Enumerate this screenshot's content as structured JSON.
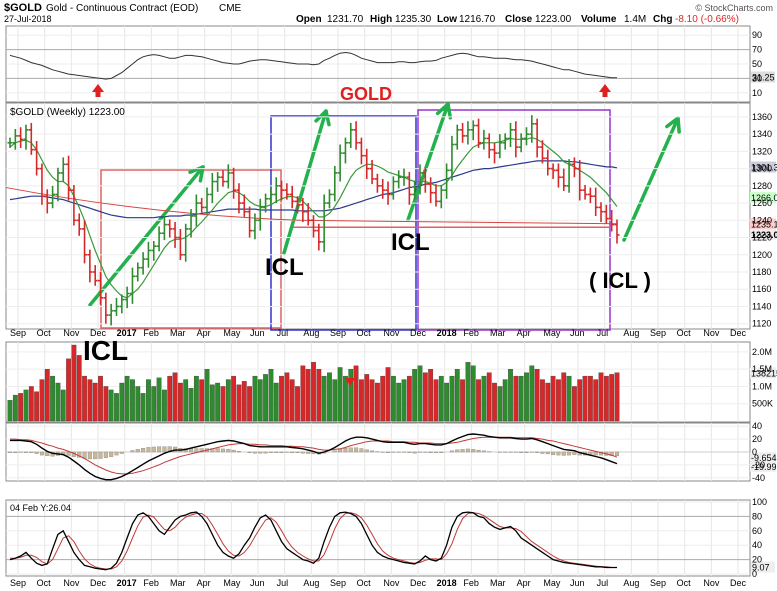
{
  "header": {
    "symbol": "$GOLD",
    "description": "Gold - Continuous Contract (EOD)",
    "exchange": "CME",
    "date": "27-Jul-2018",
    "copyright": "© StockCharts.com",
    "open_label": "Open",
    "open": "1231.70",
    "high_label": "High",
    "high": "1235.30",
    "low_label": "Low",
    "low": "1216.70",
    "close_label": "Close",
    "close": "1223.00",
    "volume_label": "Volume",
    "volume": "1.4M",
    "chg_label": "Chg",
    "chg": "-8.10 (-0.66%)"
  },
  "panels": {
    "top_axis": [
      "90",
      "70",
      "50",
      "30",
      "10"
    ],
    "top_value": "31.25",
    "price_title": "$GOLD (Weekly) 1223.00",
    "gold_label": "GOLD",
    "price_axis": [
      "1360",
      "1340",
      "1320",
      "1300",
      "1280",
      "1260",
      "1240",
      "1220",
      "1200",
      "1180",
      "1160",
      "1140",
      "1120"
    ],
    "price_tags": [
      "1301.3",
      "1266.0",
      "1235.1",
      "1223.0"
    ],
    "volume_axis": [
      "2.0M",
      "1.5M",
      "1.0M",
      "500K"
    ],
    "volume_tag": "1382150",
    "macd_axis": [
      "40",
      "20",
      "0",
      "-20",
      "-40"
    ],
    "macd_tags": [
      "-9.654",
      "-19.99"
    ],
    "stoch_title": "04 Feb Y:26.04",
    "stoch_axis": [
      "100",
      "80",
      "60",
      "40",
      "20",
      "0"
    ],
    "stoch_tag": "9.07"
  },
  "annotations": [
    "ICL",
    "ICL",
    "ICL",
    "( ICL )"
  ],
  "x_axis_labels": [
    "Sep",
    "Oct",
    "Nov",
    "Dec",
    "2017",
    "Feb",
    "Mar",
    "Apr",
    "May",
    "Jun",
    "Jul",
    "Aug",
    "Sep",
    "Oct",
    "Nov",
    "Dec",
    "2018",
    "Feb",
    "Mar",
    "Apr",
    "May",
    "Jun",
    "Jul",
    "Aug",
    "Sep",
    "Oct",
    "Nov",
    "Dec"
  ],
  "colors": {
    "up": "#2e8b2e",
    "down": "#d62828",
    "arrow": "#22b14c",
    "box_red": "#e06060",
    "box_blue": "#3333cc",
    "box_purple": "#9933cc",
    "ma_long": "#2a3b8f",
    "ma_short": "#3a9a3a",
    "ma_red": "#d64545"
  },
  "chart_data": {
    "type": "ohlc",
    "interval": "weekly",
    "ylim": [
      1115,
      1375
    ],
    "close": [
      1330,
      1338,
      1334,
      1345,
      1322,
      1300,
      1268,
      1260,
      1270,
      1295,
      1305,
      1275,
      1240,
      1230,
      1200,
      1180,
      1170,
      1150,
      1130,
      1135,
      1140,
      1148,
      1155,
      1175,
      1185,
      1195,
      1205,
      1210,
      1225,
      1235,
      1230,
      1220,
      1200,
      1230,
      1245,
      1260,
      1255,
      1270,
      1285,
      1290,
      1285,
      1295,
      1275,
      1260,
      1250,
      1228,
      1240,
      1255,
      1265,
      1270,
      1280,
      1275,
      1270,
      1262,
      1258,
      1250,
      1240,
      1228,
      1215,
      1260,
      1270,
      1295,
      1318,
      1330,
      1345,
      1330,
      1315,
      1300,
      1288,
      1280,
      1275,
      1270,
      1285,
      1290,
      1290,
      1270,
      1278,
      1295,
      1282,
      1272,
      1262,
      1275,
      1298,
      1328,
      1345,
      1338,
      1345,
      1350,
      1330,
      1335,
      1322,
      1318,
      1330,
      1335,
      1345,
      1325,
      1335,
      1340,
      1352,
      1325,
      1312,
      1300,
      1298,
      1290,
      1280,
      1305,
      1300,
      1275,
      1270,
      1268,
      1255,
      1250,
      1242,
      1235,
      1223
    ],
    "ma_short": [
      1325,
      1330,
      1332,
      1333,
      1330,
      1322,
      1310,
      1298,
      1290,
      1285,
      1285,
      1280,
      1268,
      1255,
      1240,
      1222,
      1205,
      1190,
      1175,
      1165,
      1158,
      1152,
      1150,
      1155,
      1160,
      1168,
      1178,
      1188,
      1198,
      1208,
      1215,
      1218,
      1218,
      1220,
      1225,
      1232,
      1238,
      1245,
      1252,
      1260,
      1266,
      1272,
      1274,
      1272,
      1268,
      1262,
      1258,
      1256,
      1256,
      1258,
      1262,
      1265,
      1267,
      1268,
      1266,
      1262,
      1256,
      1250,
      1244,
      1244,
      1248,
      1256,
      1266,
      1278,
      1290,
      1298,
      1302,
      1305,
      1305,
      1303,
      1300,
      1296,
      1294,
      1292,
      1290,
      1287,
      1285,
      1285,
      1285,
      1283,
      1280,
      1280,
      1284,
      1292,
      1302,
      1310,
      1318,
      1325,
      1328,
      1330,
      1330,
      1330,
      1331,
      1333,
      1335,
      1334,
      1334,
      1334,
      1336,
      1334,
      1330,
      1325,
      1320,
      1315,
      1308,
      1305,
      1302,
      1298,
      1294,
      1290,
      1284,
      1278,
      1272,
      1264,
      1256
    ],
    "ma_long": [
      1264,
      1265,
      1266,
      1267,
      1268,
      1268,
      1268,
      1267,
      1266,
      1265,
      1264,
      1262,
      1260,
      1258,
      1256,
      1254,
      1252,
      1250,
      1248,
      1246,
      1245,
      1244,
      1243,
      1243,
      1243,
      1243,
      1243,
      1243,
      1244,
      1244,
      1245,
      1245,
      1245,
      1246,
      1246,
      1247,
      1248,
      1249,
      1250,
      1251,
      1252,
      1253,
      1253,
      1253,
      1253,
      1253,
      1253,
      1252,
      1252,
      1252,
      1252,
      1252,
      1252,
      1252,
      1251,
      1251,
      1251,
      1251,
      1251,
      1251,
      1252,
      1253,
      1254,
      1256,
      1258,
      1260,
      1262,
      1264,
      1266,
      1268,
      1270,
      1271,
      1272,
      1274,
      1276,
      1278,
      1279,
      1280,
      1282,
      1283,
      1284,
      1286,
      1288,
      1290,
      1292,
      1294,
      1296,
      1298,
      1299,
      1300,
      1300,
      1301,
      1302,
      1303,
      1304,
      1305,
      1306,
      1307,
      1308,
      1309,
      1309,
      1309,
      1309,
      1309,
      1309,
      1308,
      1308,
      1307,
      1306,
      1305,
      1304,
      1303,
      1302,
      1302,
      1301
    ],
    "volume": [
      0.6,
      0.75,
      0.8,
      0.9,
      1.0,
      0.85,
      1.2,
      1.5,
      1.3,
      1.1,
      0.9,
      1.8,
      2.2,
      1.9,
      1.3,
      1.2,
      1.1,
      1.3,
      1.0,
      0.9,
      0.8,
      1.1,
      1.3,
      1.2,
      1.0,
      0.8,
      1.2,
      1.0,
      1.25,
      0.9,
      1.3,
      1.4,
      1.1,
      1.2,
      0.95,
      1.3,
      1.2,
      1.5,
      1.05,
      1.1,
      1.0,
      1.2,
      1.3,
      1.05,
      1.15,
      1.0,
      1.3,
      1.2,
      1.35,
      1.5,
      1.1,
      1.3,
      1.4,
      1.2,
      1.0,
      1.6,
      1.5,
      1.7,
      1.5,
      1.3,
      1.4,
      1.2,
      1.55,
      1.3,
      1.5,
      1.6,
      1.2,
      1.35,
      1.2,
      1.1,
      1.3,
      1.55,
      1.3,
      1.1,
      1.2,
      1.3,
      1.5,
      1.6,
      1.4,
      1.5,
      1.2,
      1.3,
      1.1,
      1.3,
      1.5,
      1.2,
      1.7,
      1.6,
      1.2,
      1.3,
      1.4,
      1.1,
      1.0,
      1.2,
      1.5,
      1.3,
      1.3,
      1.4,
      1.6,
      1.5,
      1.2,
      1.1,
      1.3,
      1.2,
      1.4,
      1.3,
      1.0,
      1.2,
      1.3,
      1.3,
      1.2,
      1.4,
      1.3,
      1.35,
      1.4
    ],
    "macd": [
      18,
      18,
      18,
      17,
      16,
      12,
      6,
      1,
      -2,
      -3,
      -4,
      -8,
      -14,
      -20,
      -27,
      -33,
      -38,
      -41,
      -43,
      -43,
      -41,
      -38,
      -34,
      -29,
      -24,
      -19,
      -14,
      -10,
      -6,
      -2,
      1,
      3,
      3,
      4,
      6,
      8,
      10,
      12,
      14,
      16,
      17,
      18,
      17,
      15,
      13,
      10,
      9,
      8,
      8,
      8,
      8,
      8,
      8,
      7,
      6,
      5,
      3,
      1,
      -2,
      0,
      3,
      7,
      12,
      17,
      21,
      23,
      23,
      22,
      20,
      18,
      16,
      15,
      15,
      15,
      15,
      13,
      12,
      13,
      13,
      12,
      11,
      11,
      13,
      17,
      21,
      24,
      27,
      28,
      27,
      26,
      24,
      23,
      22,
      22,
      22,
      21,
      20,
      20,
      21,
      19,
      16,
      13,
      10,
      7,
      4,
      3,
      2,
      -1,
      -3,
      -5,
      -7,
      -9,
      -12,
      -15,
      -18
    ],
    "macd_signal": [
      20,
      20,
      19,
      19,
      18,
      16,
      14,
      11,
      9,
      6,
      4,
      1,
      -2,
      -6,
      -10,
      -15,
      -20,
      -24,
      -28,
      -31,
      -33,
      -34,
      -34,
      -33,
      -31,
      -29,
      -26,
      -23,
      -20,
      -16,
      -13,
      -10,
      -7,
      -5,
      -3,
      -1,
      1,
      3,
      5,
      7,
      9,
      11,
      12,
      13,
      13,
      12,
      12,
      11,
      11,
      10,
      10,
      10,
      9,
      9,
      8,
      8,
      7,
      6,
      4,
      3,
      3,
      4,
      5,
      7,
      10,
      12,
      14,
      16,
      17,
      17,
      17,
      17,
      16,
      16,
      16,
      15,
      15,
      14,
      14,
      14,
      13,
      13,
      13,
      14,
      15,
      17,
      19,
      21,
      22,
      23,
      23,
      23,
      23,
      23,
      23,
      22,
      22,
      22,
      22,
      21,
      20,
      18,
      17,
      15,
      13,
      11,
      9,
      7,
      5,
      3,
      1,
      -1,
      -3,
      -5,
      -8
    ],
    "stoch_k": [
      20,
      22,
      25,
      30,
      22,
      15,
      12,
      14,
      35,
      55,
      60,
      45,
      30,
      20,
      12,
      10,
      8,
      7,
      6,
      8,
      15,
      30,
      50,
      70,
      82,
      85,
      80,
      70,
      60,
      55,
      65,
      75,
      80,
      82,
      85,
      86,
      80,
      70,
      55,
      40,
      30,
      25,
      22,
      28,
      40,
      50,
      65,
      78,
      82,
      75,
      60,
      45,
      35,
      30,
      25,
      20,
      18,
      15,
      22,
      45,
      65,
      80,
      85,
      86,
      84,
      80,
      70,
      55,
      40,
      30,
      25,
      22,
      20,
      18,
      16,
      15,
      14,
      18,
      25,
      20,
      18,
      22,
      40,
      65,
      80,
      85,
      86,
      85,
      80,
      78,
      70,
      65,
      62,
      64,
      66,
      60,
      50,
      45,
      40,
      35,
      30,
      25,
      20,
      18,
      16,
      15,
      14,
      13,
      12,
      11,
      10,
      10,
      9,
      9,
      9
    ],
    "stoch_d": [
      22,
      22,
      23,
      26,
      26,
      23,
      17,
      14,
      20,
      35,
      50,
      53,
      45,
      32,
      21,
      14,
      10,
      8,
      7,
      7,
      10,
      18,
      32,
      50,
      67,
      79,
      82,
      79,
      70,
      62,
      60,
      65,
      73,
      79,
      82,
      84,
      84,
      79,
      68,
      55,
      42,
      32,
      26,
      25,
      30,
      39,
      52,
      64,
      75,
      78,
      72,
      60,
      47,
      37,
      30,
      25,
      21,
      18,
      18,
      27,
      44,
      63,
      77,
      84,
      85,
      83,
      78,
      68,
      55,
      42,
      32,
      26,
      22,
      20,
      18,
      16,
      15,
      16,
      19,
      21,
      21,
      20,
      28,
      42,
      62,
      77,
      84,
      85,
      84,
      81,
      76,
      71,
      66,
      64,
      64,
      63,
      59,
      52,
      45,
      40,
      35,
      30,
      25,
      21,
      18,
      16,
      15,
      14,
      13,
      12,
      11,
      10,
      10,
      9,
      9
    ],
    "rsi_top": [
      62,
      60,
      58,
      55,
      52,
      50,
      48,
      45,
      42,
      40,
      38,
      36,
      35,
      34,
      33,
      32,
      31,
      30,
      29,
      30,
      34,
      38,
      44,
      50,
      56,
      60,
      62,
      63,
      62,
      60,
      58,
      58,
      60,
      62,
      62,
      61,
      60,
      58,
      56,
      54,
      52,
      51,
      50,
      50,
      52,
      54,
      55,
      56,
      56,
      55,
      54,
      53,
      52,
      51,
      50,
      50,
      50,
      49,
      50,
      55,
      58,
      62,
      65,
      66,
      65,
      62,
      58,
      56,
      54,
      52,
      52,
      52,
      52,
      53,
      53,
      52,
      52,
      53,
      54,
      54,
      55,
      58,
      60,
      62,
      64,
      65,
      64,
      62,
      60,
      60,
      59,
      58,
      58,
      58,
      57,
      56,
      56,
      55,
      54,
      52,
      50,
      48,
      46,
      44,
      42,
      42,
      40,
      38,
      36,
      35,
      34,
      33,
      32,
      31,
      31
    ]
  }
}
